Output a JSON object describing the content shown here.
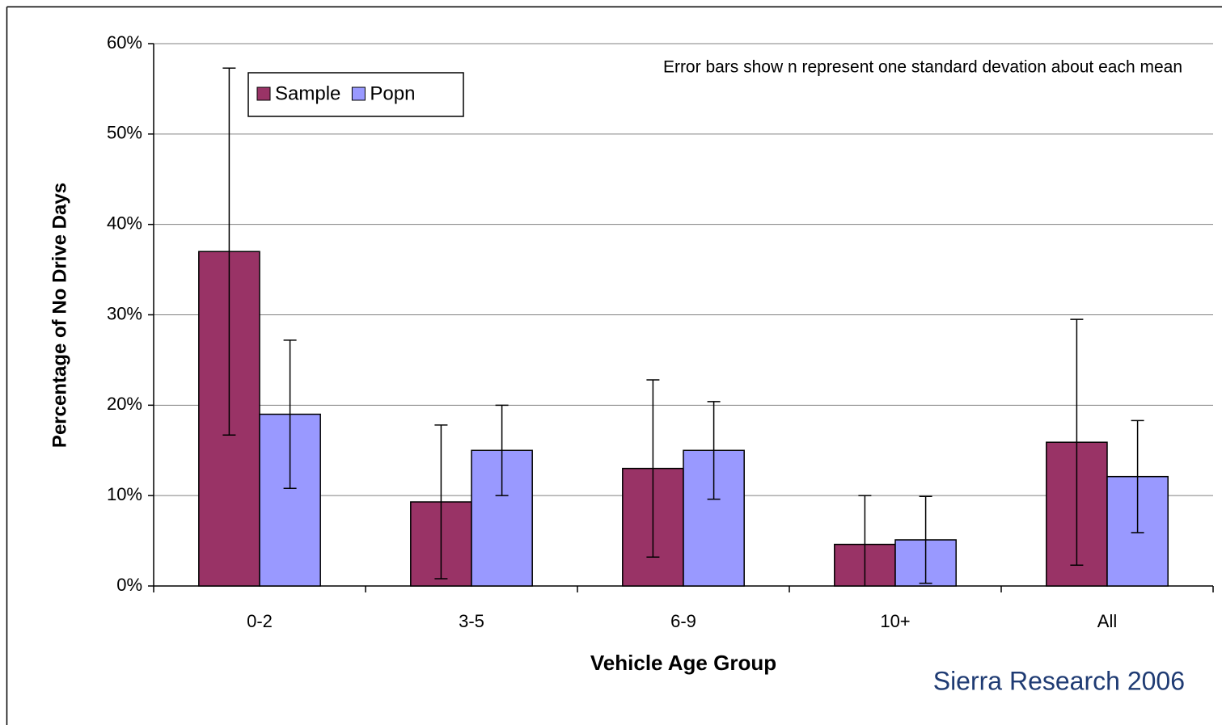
{
  "chart_data": {
    "type": "bar",
    "annotation": "Error bars show n represent one standard devation about each mean",
    "source": "Sierra Research 2006",
    "x_label": "Vehicle Age Group",
    "y_label": "Percentage of No Drive Days",
    "categories": [
      "0-2",
      "3-5",
      "6-9",
      "10+",
      "All"
    ],
    "series": [
      {
        "name": "Sample",
        "color": "#993366",
        "values": [
          37,
          9.3,
          13,
          4.6,
          15.9
        ],
        "errors": [
          20.3,
          8.5,
          9.8,
          5.4,
          13.6
        ]
      },
      {
        "name": "Popn",
        "color": "#9999ff",
        "values": [
          19,
          15,
          15,
          5.1,
          12.1
        ],
        "errors": [
          8.2,
          5,
          5.4,
          4.8,
          6.2
        ]
      }
    ],
    "ylim": [
      0,
      60
    ],
    "yticks": [
      {
        "value": 0,
        "label": "0%"
      },
      {
        "value": 10,
        "label": "10%"
      },
      {
        "value": 20,
        "label": "20%"
      },
      {
        "value": 30,
        "label": "30%"
      },
      {
        "value": 40,
        "label": "40%"
      },
      {
        "value": 50,
        "label": "50%"
      },
      {
        "value": 60,
        "label": "60%"
      }
    ],
    "grid": true
  }
}
